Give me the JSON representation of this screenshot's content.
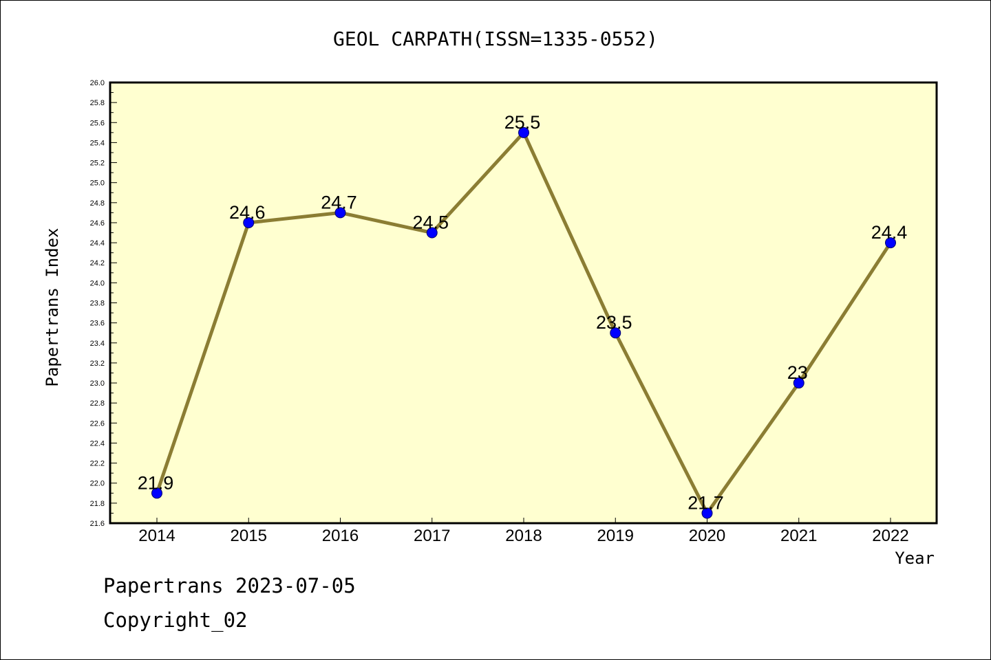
{
  "chart_data": {
    "type": "line",
    "title": "GEOL CARPATH(ISSN=1335-0552)",
    "xlabel": "Year",
    "ylabel": "Papertrans Index",
    "categories": [
      "2014",
      "2015",
      "2016",
      "2017",
      "2018",
      "2019",
      "2020",
      "2021",
      "2022"
    ],
    "series": [
      {
        "values": [
          21.9,
          24.6,
          24.7,
          24.5,
          25.5,
          23.5,
          21.7,
          23,
          24.4
        ]
      }
    ],
    "data_labels": [
      "21.9",
      "24.6",
      "24.7",
      "24.5",
      "25.5",
      "23.5",
      "21.7",
      "23",
      "24.4"
    ],
    "ylim": [
      21.6,
      26.0
    ],
    "yticks": [
      "21.6",
      "21.8",
      "22.0",
      "22.2",
      "22.4",
      "22.6",
      "22.8",
      "23.0",
      "23.2",
      "23.4",
      "23.6",
      "23.8",
      "24.0",
      "24.2",
      "24.4",
      "24.6",
      "24.8",
      "25.0",
      "25.2",
      "25.4",
      "25.6",
      "25.8",
      "26.0"
    ],
    "grid": false,
    "colors": {
      "plot_background": "#ffffd0",
      "line": "#8b7d33",
      "marker": "#0000ff"
    }
  },
  "footer": {
    "line1": "Papertrans 2023-07-05",
    "line2": "Copyright_02"
  }
}
